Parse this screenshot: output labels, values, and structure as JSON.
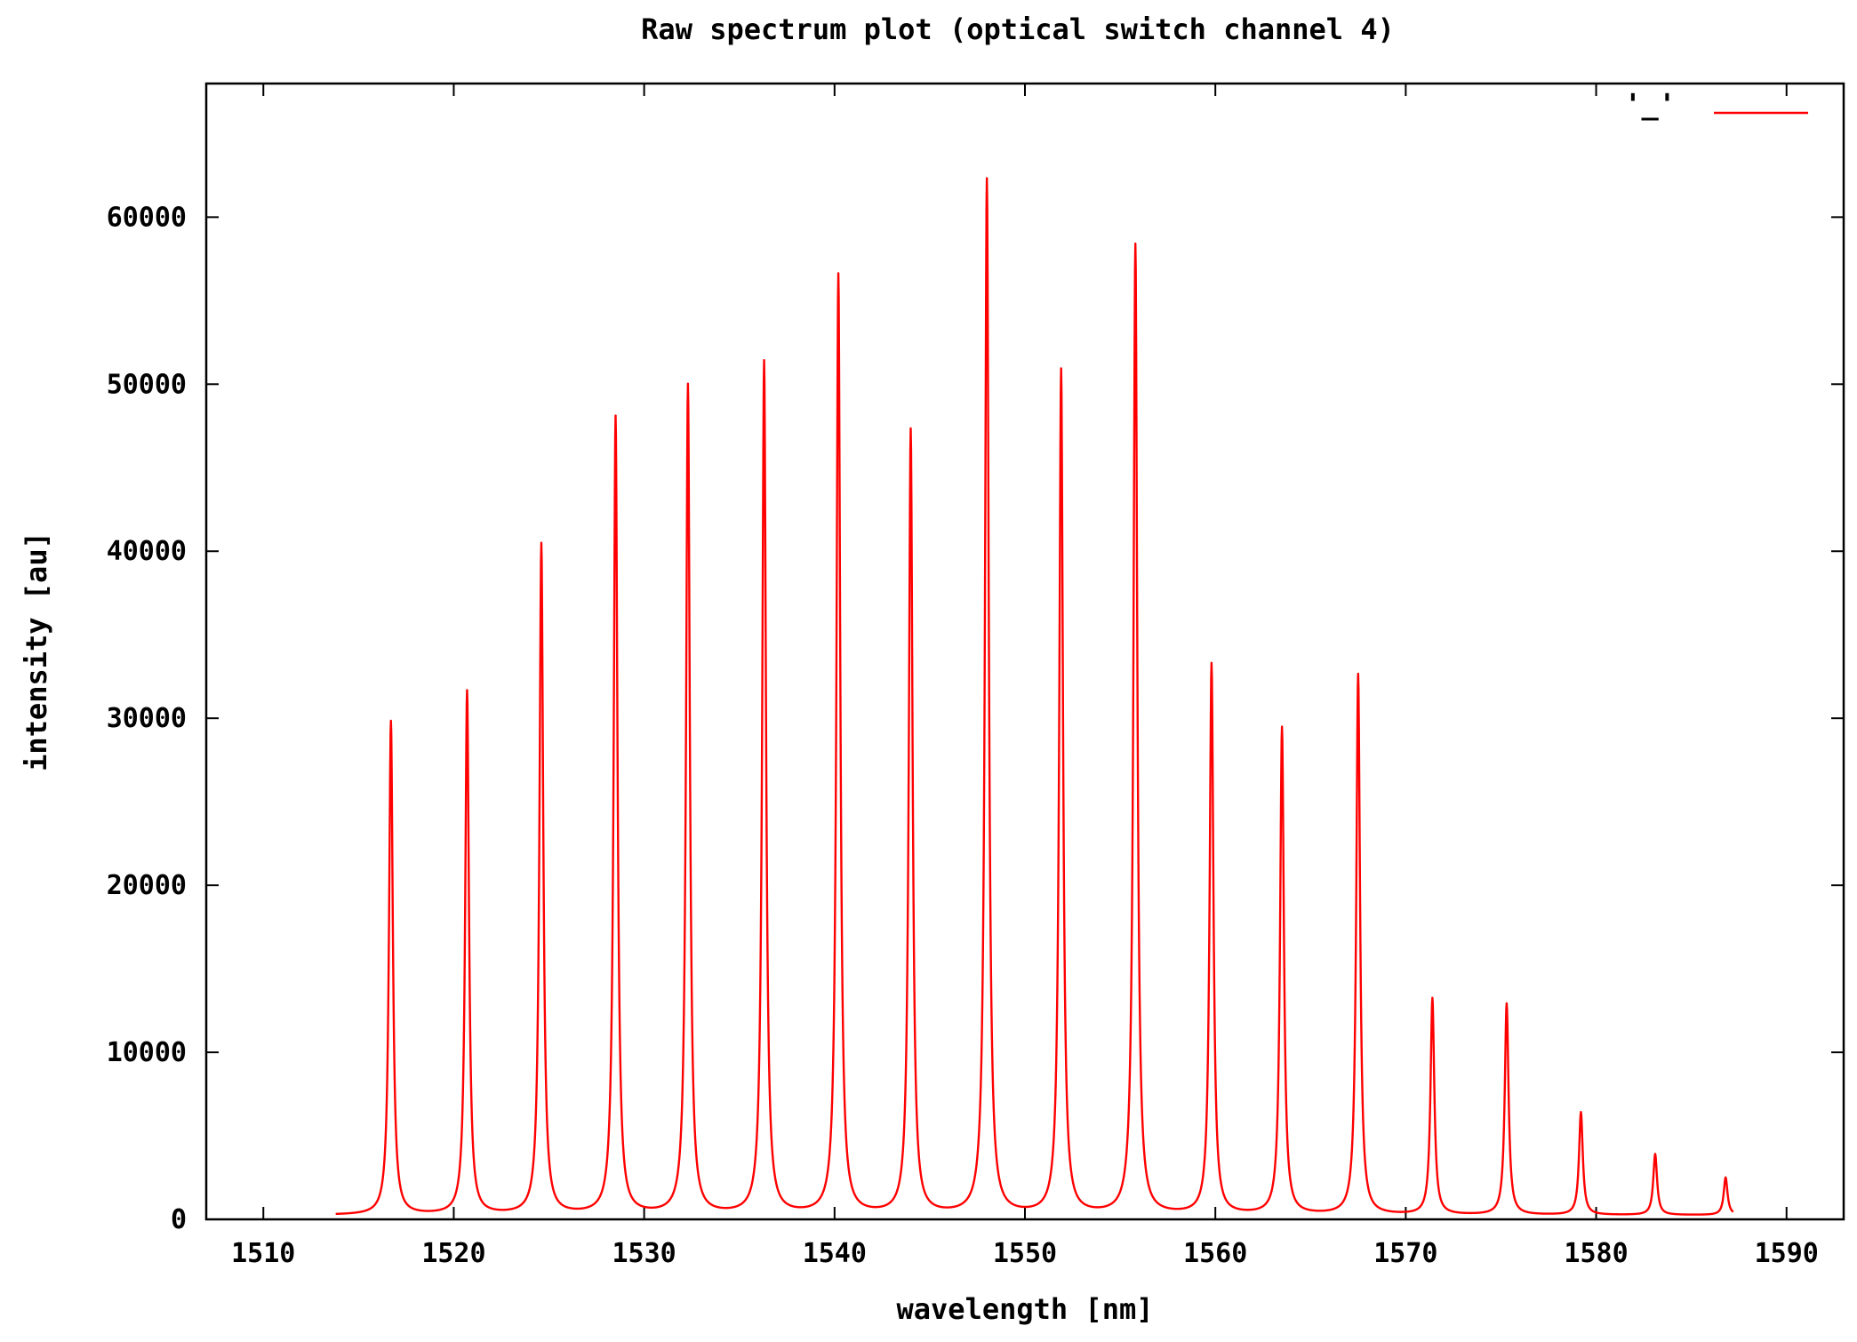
{
  "chart_data": {
    "type": "line",
    "title": "Raw spectrum plot (optical switch channel 4)",
    "xlabel": "wavelength [nm]",
    "ylabel": "intensity [au]",
    "xlim": [
      1507,
      1593
    ],
    "ylim": [
      0,
      68000
    ],
    "x_ticks": [
      1510,
      1520,
      1530,
      1540,
      1550,
      1560,
      1570,
      1580,
      1590
    ],
    "x_tick_labels": [
      "1510",
      "1520",
      "1530",
      "1540",
      "1550",
      "1560",
      "1570",
      "1580",
      "1590"
    ],
    "y_ticks": [
      0,
      10000,
      20000,
      30000,
      40000,
      50000,
      60000
    ],
    "y_tick_labels": [
      "0",
      "10000",
      "20000",
      "30000",
      "40000",
      "50000",
      "60000"
    ],
    "grid": false,
    "legend": {
      "placement": "top-right"
    },
    "series": [
      {
        "name": "'_'",
        "color": "#ff0000",
        "x_range": [
          1513.8,
          1587.2
        ],
        "baseline": 250,
        "peaks": [
          {
            "x": 1516.7,
            "y": 29800
          },
          {
            "x": 1520.7,
            "y": 31600
          },
          {
            "x": 1524.6,
            "y": 40400
          },
          {
            "x": 1528.5,
            "y": 48000
          },
          {
            "x": 1532.3,
            "y": 49900
          },
          {
            "x": 1536.3,
            "y": 51300
          },
          {
            "x": 1540.2,
            "y": 56500
          },
          {
            "x": 1544.0,
            "y": 47200
          },
          {
            "x": 1548.0,
            "y": 62200
          },
          {
            "x": 1551.9,
            "y": 50800
          },
          {
            "x": 1555.8,
            "y": 58300
          },
          {
            "x": 1559.8,
            "y": 33200
          },
          {
            "x": 1563.5,
            "y": 29400
          },
          {
            "x": 1567.5,
            "y": 32600
          },
          {
            "x": 1571.4,
            "y": 13200
          },
          {
            "x": 1575.3,
            "y": 12900
          },
          {
            "x": 1579.2,
            "y": 6400
          },
          {
            "x": 1583.1,
            "y": 3900
          },
          {
            "x": 1586.8,
            "y": 2500
          }
        ]
      }
    ]
  }
}
